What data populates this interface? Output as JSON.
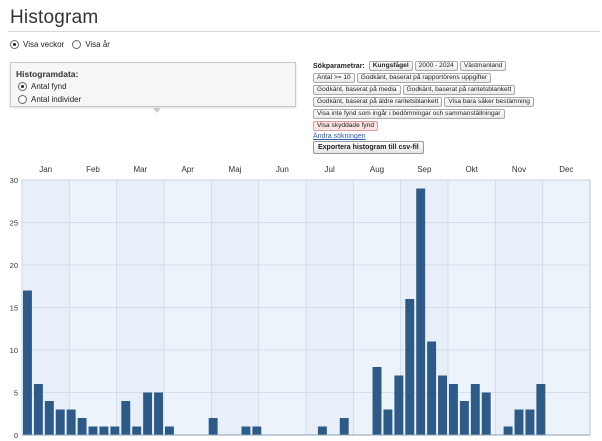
{
  "page": {
    "title": "Histogram"
  },
  "view_options": [
    {
      "label": "Visa veckor",
      "selected": true
    },
    {
      "label": "Visa år",
      "selected": false
    }
  ],
  "histogram_data": {
    "title": "Histogramdata:",
    "options": [
      {
        "label": "Antal fynd",
        "selected": true
      },
      {
        "label": "Antal individer",
        "selected": false
      }
    ]
  },
  "search_params": {
    "label": "Sökparametrar:",
    "tags": [
      {
        "text": "Kungsfågel",
        "style": "bold"
      },
      {
        "text": "2000 - 2024",
        "style": "normal"
      },
      {
        "text": "Västmanland",
        "style": "normal"
      },
      {
        "text": "Antal >= 10",
        "style": "normal"
      },
      {
        "text": "Godkänt, baserat på rapportörens uppgifter",
        "style": "normal"
      },
      {
        "text": "Godkänt, baserat på media",
        "style": "normal"
      },
      {
        "text": "Godkänt, baserat på raritetsblankett",
        "style": "normal"
      },
      {
        "text": "Godkänt, baserat på äldre raritetsblankett",
        "style": "normal"
      },
      {
        "text": "Visa bara säker bestämning",
        "style": "normal"
      },
      {
        "text": "Visa inte fynd som ingår i bedömningar och sammanställningar",
        "style": "normal"
      },
      {
        "text": "Visa skyddade fynd",
        "style": "red"
      }
    ],
    "change_link": "Ändra sökningen"
  },
  "export_button": "Exportera histogram till csv-fil",
  "colors": {
    "bar": "#2e5a87",
    "plot_bg": "#edf3fa",
    "grid": "#c9d9ea",
    "month_band": "#e4edf6",
    "accent_link": "#2a5db0"
  },
  "chart_data": {
    "type": "bar",
    "title": "",
    "xlabel": "",
    "ylabel": "",
    "ylim": [
      0,
      30
    ],
    "yticks": [
      0,
      5,
      10,
      15,
      20,
      25,
      30
    ],
    "months": [
      "Jan",
      "Feb",
      "Mar",
      "Apr",
      "Maj",
      "Jun",
      "Jul",
      "Aug",
      "Sep",
      "Okt",
      "Nov",
      "Dec"
    ],
    "x": [
      1,
      2,
      3,
      4,
      5,
      6,
      7,
      8,
      9,
      10,
      11,
      12,
      13,
      14,
      15,
      16,
      17,
      18,
      19,
      20,
      21,
      22,
      23,
      24,
      25,
      26,
      27,
      28,
      29,
      30,
      31,
      32,
      33,
      34,
      35,
      36,
      37,
      38,
      39,
      40,
      41,
      42,
      43,
      44,
      45,
      46,
      47,
      48,
      49,
      50,
      51,
      52
    ],
    "values": [
      17,
      6,
      4,
      3,
      3,
      2,
      1,
      1,
      1,
      4,
      1,
      5,
      5,
      1,
      0,
      0,
      0,
      2,
      0,
      0,
      1,
      1,
      0,
      0,
      0,
      0,
      0,
      1,
      0,
      2,
      0,
      0,
      8,
      3,
      7,
      16,
      29,
      11,
      7,
      6,
      4,
      6,
      5,
      0,
      1,
      3,
      3,
      6,
      0,
      0,
      0,
      0
    ],
    "grid": true,
    "legend": "none"
  }
}
